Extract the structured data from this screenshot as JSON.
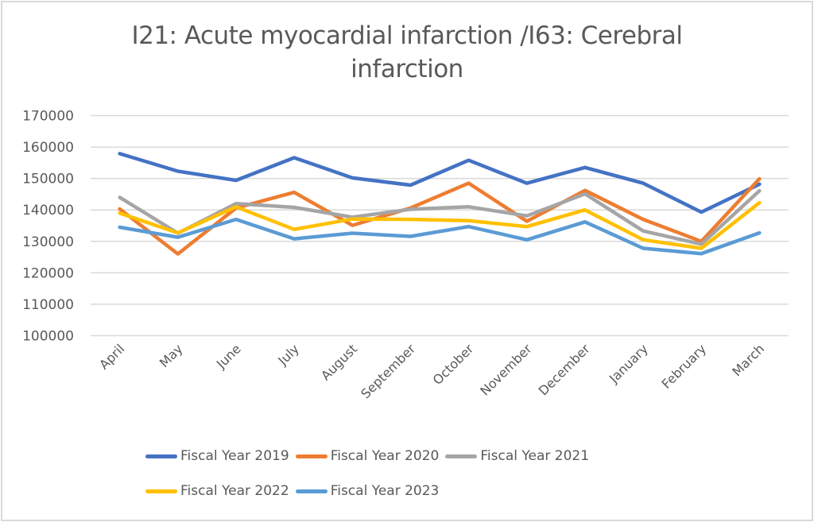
{
  "chart_data": {
    "type": "line",
    "title": "I21: Acute myocardial infarction /I63: Cerebral infarction",
    "title_lines": [
      "I21: Acute myocardial infarction /I63: Cerebral",
      "infarction"
    ],
    "xlabel": "",
    "ylabel": "",
    "ylim": [
      100000,
      170000
    ],
    "yticks": [
      100000,
      110000,
      120000,
      130000,
      140000,
      150000,
      160000,
      170000
    ],
    "ytick_labels": [
      "100000",
      "110000",
      "120000",
      "130000",
      "140000",
      "150000",
      "160000",
      "170000"
    ],
    "grid": true,
    "legend_position": "bottom",
    "categories": [
      "April",
      "May",
      "June",
      "July",
      "August",
      "September",
      "October",
      "November",
      "December",
      "January",
      "February",
      "March"
    ],
    "series": [
      {
        "name": "Fiscal Year 2019",
        "color": "#4472c4",
        "values": [
          157900,
          152300,
          149400,
          156600,
          150200,
          147900,
          155800,
          148500,
          153500,
          148500,
          139300,
          148200
        ]
      },
      {
        "name": "Fiscal Year 2020",
        "color": "#ed7d31",
        "values": [
          140300,
          126000,
          140600,
          145600,
          135100,
          140600,
          148500,
          136400,
          146200,
          137000,
          130000,
          149900
        ]
      },
      {
        "name": "Fiscal Year 2021",
        "color": "#a5a5a5",
        "values": [
          144000,
          132600,
          142000,
          140800,
          137700,
          140200,
          141000,
          138100,
          145100,
          133300,
          129100,
          146100
        ]
      },
      {
        "name": "Fiscal Year 2022",
        "color": "#ffc000",
        "values": [
          139000,
          132700,
          141000,
          133800,
          137100,
          137000,
          136600,
          134700,
          140000,
          130500,
          127800,
          142300
        ]
      },
      {
        "name": "Fiscal Year 2023",
        "color": "#5b9bd5",
        "values": [
          134500,
          131300,
          137000,
          130800,
          132600,
          131600,
          134700,
          130500,
          136200,
          127800,
          126100,
          132700
        ]
      }
    ]
  },
  "legend": {
    "rows": [
      [
        0,
        1,
        2
      ],
      [
        3,
        4
      ]
    ]
  }
}
